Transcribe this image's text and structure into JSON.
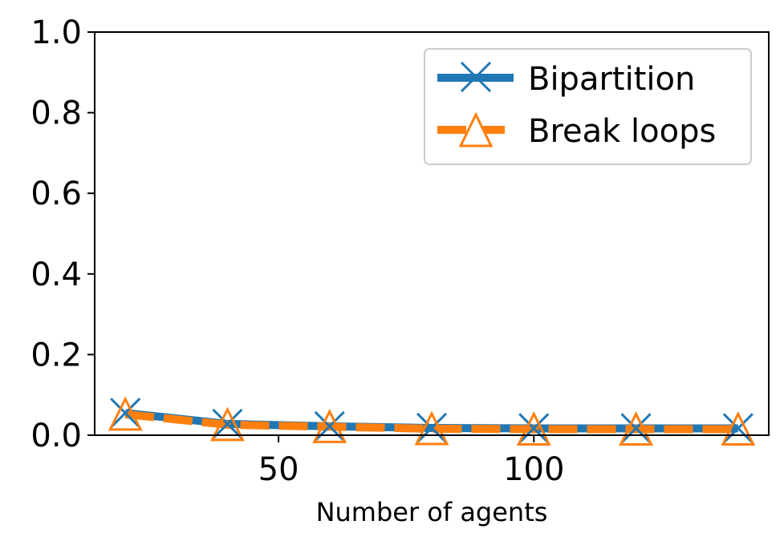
{
  "chart_data": {
    "type": "line",
    "title": "",
    "xlabel": "Number of agents",
    "ylabel": "",
    "xlim": [
      14,
      146
    ],
    "ylim": [
      0.0,
      1.0
    ],
    "x_ticks": [
      50,
      100
    ],
    "x_tick_labels": [
      "50",
      "100"
    ],
    "y_ticks": [
      0.0,
      0.2,
      0.4,
      0.6,
      0.8,
      1.0
    ],
    "y_tick_labels": [
      "0.0",
      "0.2",
      "0.4",
      "0.6",
      "0.8",
      "1.0"
    ],
    "grid": false,
    "legend_position": "top-right",
    "x": [
      20,
      40,
      60,
      80,
      100,
      120,
      140
    ],
    "series": [
      {
        "name": "Bipartition",
        "values": [
          0.055,
          0.028,
          0.022,
          0.018,
          0.017,
          0.017,
          0.017
        ],
        "color": "#1f77b4",
        "marker": "x",
        "line_style": "solid"
      },
      {
        "name": "Break loops",
        "values": [
          0.052,
          0.026,
          0.021,
          0.016,
          0.015,
          0.015,
          0.015
        ],
        "color": "#ff7f0e",
        "marker": "triangle-open",
        "line_style": "dashed"
      }
    ]
  }
}
